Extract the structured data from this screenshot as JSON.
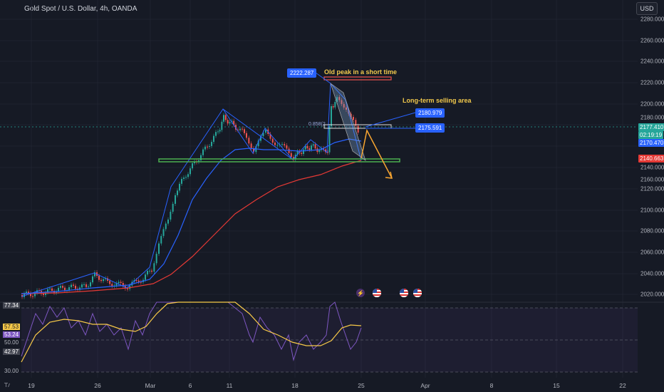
{
  "header": {
    "title": "Gold Spot / U.S. Dollar, 4h, OANDA"
  },
  "currency": "USD",
  "price_axis": {
    "ticks": [
      "2280.000",
      "2260.000",
      "2240.000",
      "2220.000",
      "2200.000",
      "2180.000",
      "2160.000",
      "2140.000",
      "2120.000",
      "2100.000",
      "2080.000",
      "2060.000",
      "2040.000",
      "2020.000"
    ]
  },
  "price_tags": {
    "last_price": "2177.410",
    "countdown": "02:19:19",
    "ma_fast": "2170.470",
    "ma_slow": "2140.663"
  },
  "rsi_axis": {
    "tag_upper": "77.34",
    "tag_ma": "57.53",
    "tag_rsi": "53.24",
    "tag_lower": "42.97",
    "tick_50": "50.00",
    "tick_30": "30.00"
  },
  "time_axis": {
    "ticks": [
      "19",
      "26",
      "Mar",
      "6",
      "11",
      "18",
      "25",
      "Apr",
      "8",
      "15",
      "22"
    ]
  },
  "annotations": {
    "peak_label": "2222.287",
    "peak_note": "Old peak in a short time",
    "selling_note": "Long-term selling area",
    "level_1": "2180.979",
    "level_2": "2175.591",
    "fib_label": "0.858(2"
  },
  "colors": {
    "background": "#161a25",
    "ma_blue": "#2962ff",
    "ma_red": "#e53935",
    "bull": "#26a69a",
    "bear": "#ef5350",
    "support": "#4caf50",
    "arrow": "#f7a531",
    "rsi": "#7e57c2",
    "rsi_ma": "#f7c948"
  },
  "icons": [
    "flash-icon",
    "us-flag-icon",
    "us-flag-icon",
    "us-flag-icon",
    "tradingview-logo-icon"
  ]
}
